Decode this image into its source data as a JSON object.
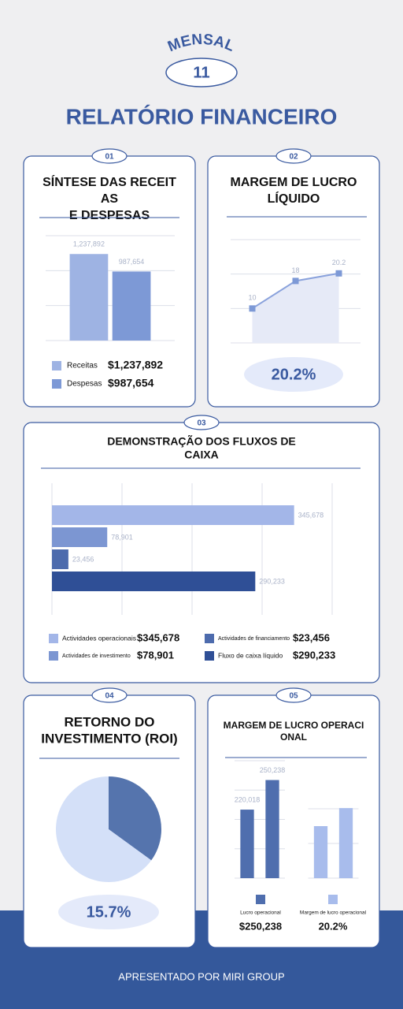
{
  "header": {
    "label": "MENSAL",
    "issue": "11",
    "title": "RELATÓRIO FINANCEIRO"
  },
  "cards": [
    {
      "badge": "01",
      "title": [
        "SÍNTESE DAS RECEIT",
        "AS",
        "E DESPESAS"
      ]
    },
    {
      "badge": "02",
      "title": [
        "MARGEM DE LUCRO",
        "LÍQUIDO"
      ],
      "summary": "20.2%"
    },
    {
      "badge": "03",
      "title": [
        "DEMONSTRAÇÃO DOS FLUXOS DE",
        "CAIXA"
      ]
    },
    {
      "badge": "04",
      "title": [
        "RETORNO DO",
        "INVESTIMENTO (ROI)"
      ],
      "summary": "15.7%"
    },
    {
      "badge": "05",
      "title": [
        "MARGEM DE LUCRO OPERACI",
        "ONAL"
      ]
    }
  ],
  "chart_data": [
    {
      "type": "bar",
      "categories": [
        null
      ],
      "ylim": [
        0,
        1500000
      ],
      "yticks": [
        0,
        500000,
        1000000,
        1500000
      ],
      "grid": true,
      "series": [
        {
          "name": "Receitas",
          "color": "#9eb3e3",
          "values": [
            1237892
          ],
          "value_labels": [
            "1,237,892"
          ],
          "total_label": "$1,237,892"
        },
        {
          "name": "Despesas",
          "color": "#7d99d6",
          "values": [
            987654
          ],
          "value_labels": [
            "987,654"
          ],
          "total_label": "$987,654"
        }
      ]
    },
    {
      "type": "line",
      "categories": [
        null,
        null,
        null
      ],
      "values": [
        10,
        18,
        20.2
      ],
      "color": "#8aa2dc",
      "ylim": [
        0,
        30
      ],
      "yticks": [
        0,
        10,
        20,
        30
      ],
      "grid": true
    },
    {
      "type": "hbar",
      "categories": [
        "Actividades operacionais",
        "Actividades de investimento",
        "Actividades de financiamento",
        "Fluxo de caixa líquido"
      ],
      "values": [
        345678,
        78901,
        23456,
        290233
      ],
      "value_labels": [
        "345,678",
        "78,901",
        "23,456",
        "290,233"
      ],
      "total_labels": [
        "$345,678",
        "$78,901",
        "$23,456",
        "$290,233"
      ],
      "colors": [
        "#a3b6e8",
        "#7c96d2",
        "#4d6bad",
        "#2f4f96"
      ],
      "xlim": [
        0,
        400000
      ],
      "xticks": [
        0,
        100000,
        200000,
        300000,
        400000
      ],
      "grid": true
    },
    {
      "type": "pie",
      "values": [
        35,
        65
      ],
      "colors": [
        "#5574ad",
        "#d4e0f8"
      ]
    },
    {
      "type": "bar",
      "categories": [
        null,
        null
      ],
      "ylim": [
        150000,
        270000
      ],
      "yticks": [
        150000,
        180000,
        210000,
        240000,
        270000
      ],
      "grid": true,
      "series": [
        {
          "name": "Lucro operacional",
          "color": "#4f6eae",
          "values": [
            220018,
            250238
          ],
          "value_labels": [
            "220,018",
            "250,238"
          ],
          "total_label": "$250,238"
        }
      ]
    },
    {
      "type": "bar",
      "categories": [
        null,
        null
      ],
      "ylim": [
        0,
        25
      ],
      "yticks": [
        0,
        10,
        20
      ],
      "grid": true,
      "series": [
        {
          "name": "Margem de lucro operacional",
          "color": "#a8bcec",
          "values": [
            15,
            20.2
          ],
          "total_label": "20.2%"
        }
      ]
    }
  ],
  "footer": "APRESENTADO POR MIRI GROUP"
}
